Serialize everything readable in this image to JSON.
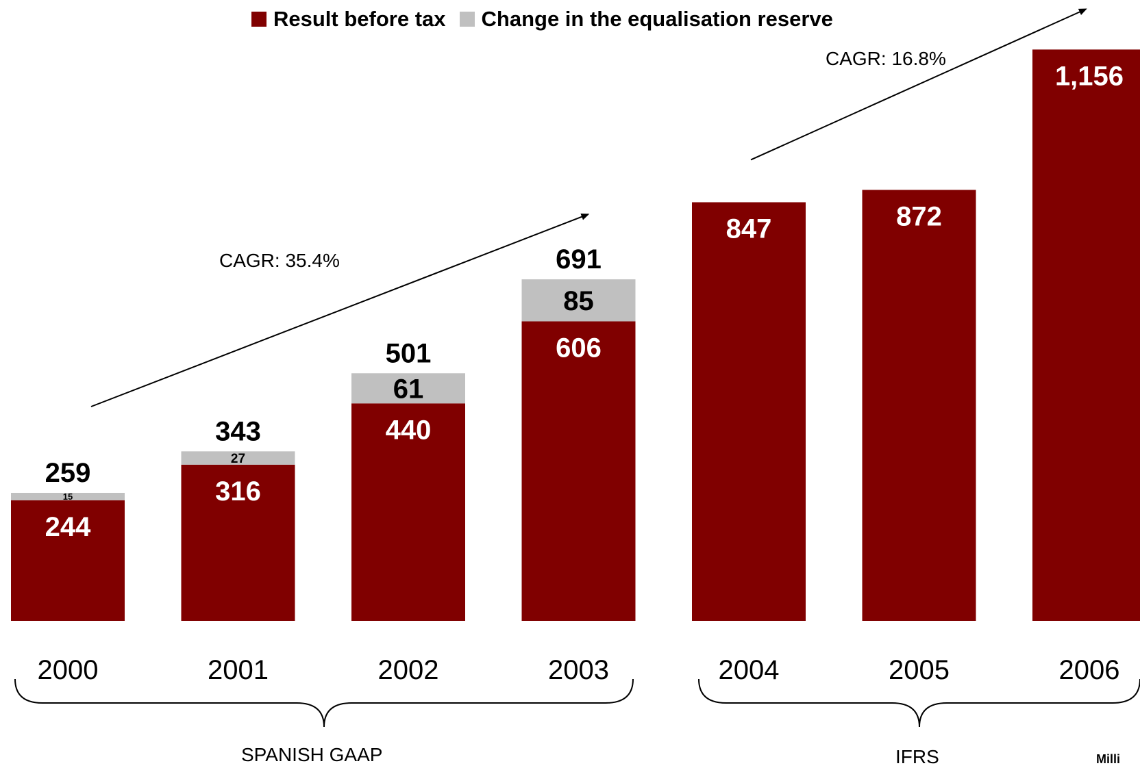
{
  "chart_data": {
    "type": "bar",
    "stacked": true,
    "categories": [
      "2000",
      "2001",
      "2002",
      "2003",
      "2004",
      "2005",
      "2006"
    ],
    "series": [
      {
        "name": "Result before tax",
        "values": [
          244,
          316,
          440,
          606,
          847,
          872,
          1156
        ],
        "color": "#800000"
      },
      {
        "name": "Change in the equalisation reserve",
        "values": [
          15,
          27,
          61,
          85,
          null,
          null,
          null
        ],
        "color": "#c0c0c0"
      }
    ],
    "totals": [
      "259",
      "343",
      "501",
      "691",
      null,
      null,
      null
    ],
    "value_labels": {
      "result": [
        "244",
        "316",
        "440",
        "606",
        "847",
        "872",
        "1,156"
      ],
      "reserve": [
        "15",
        "27",
        "61",
        "85",
        null,
        null,
        null
      ]
    },
    "annotations": [
      {
        "text": "CAGR: 35.4%",
        "from": "2000",
        "to": "2003"
      },
      {
        "text": "CAGR: 16.8%",
        "from": "2004",
        "to": "2006"
      }
    ],
    "groups": [
      {
        "label": "SPANISH GAAP",
        "categories": [
          "2000",
          "2001",
          "2002",
          "2003"
        ]
      },
      {
        "label": "IFRS",
        "categories": [
          "2004",
          "2005",
          "2006"
        ]
      }
    ],
    "footnote": "Milli",
    "ylim": [
      0,
      1250
    ],
    "grid": false,
    "legend_position": "top"
  }
}
